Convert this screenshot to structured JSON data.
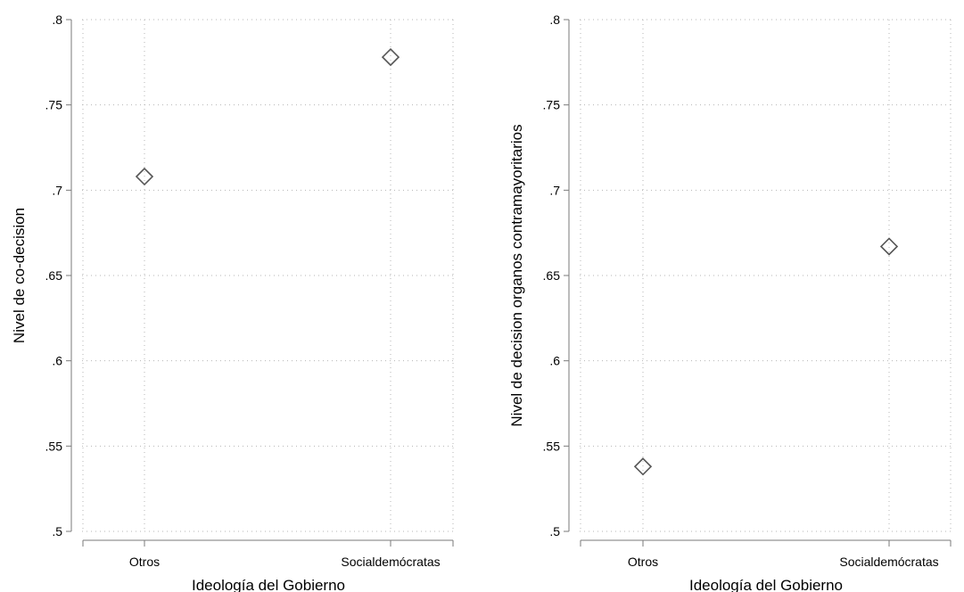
{
  "chart_data": [
    {
      "type": "scatter",
      "xlabel": "Ideología del Gobierno",
      "ylabel": "Nivel de co-decision",
      "categories": [
        "Otros",
        "Socialdemócratas"
      ],
      "values": [
        0.708,
        0.778
      ],
      "ylim": [
        0.5,
        0.8
      ],
      "yticks": [
        ".5",
        ".55",
        ".6",
        ".65",
        ".7",
        ".75",
        ".8"
      ],
      "grid": true,
      "marker": "hollow-diamond"
    },
    {
      "type": "scatter",
      "xlabel": "Ideología del Gobierno",
      "ylabel": "Nivel de decision organos contramayoritarios",
      "categories": [
        "Otros",
        "Socialdemócratas"
      ],
      "values": [
        0.538,
        0.667
      ],
      "ylim": [
        0.5,
        0.8
      ],
      "yticks": [
        ".5",
        ".55",
        ".6",
        ".65",
        ".7",
        ".75",
        ".8"
      ],
      "grid": true,
      "marker": "hollow-diamond"
    }
  ],
  "colors": {
    "marker": "#555555",
    "axis": "#7a7a7a",
    "grid": "#b5b5b5"
  }
}
